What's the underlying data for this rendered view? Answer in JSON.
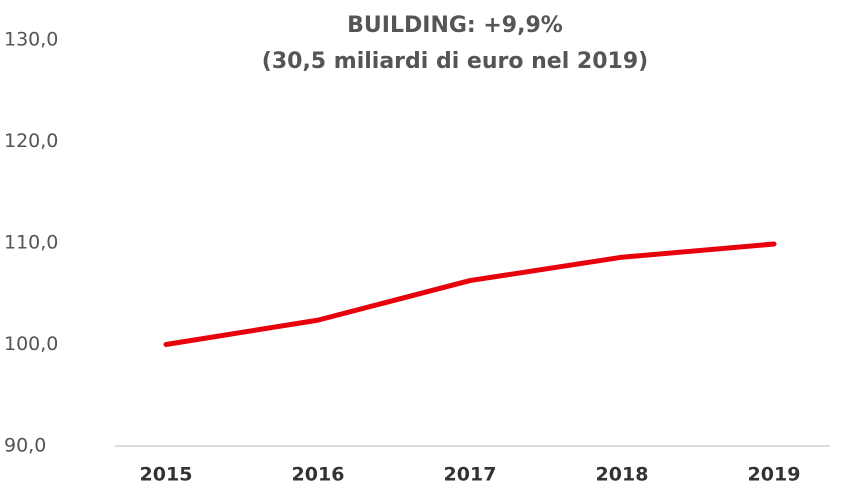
{
  "chart_data": {
    "type": "line",
    "title": "BUILDING: +9,9%",
    "subtitle": "(30,5 miliardi di euro nel 2019)",
    "categories": [
      "2015",
      "2016",
      "2017",
      "2018",
      "2019"
    ],
    "series": [
      {
        "name": "Building",
        "color": "#e8000b",
        "values": [
          100.0,
          102.4,
          106.3,
          108.6,
          109.9
        ]
      }
    ],
    "ylim": [
      90,
      130
    ],
    "yticks": [
      {
        "value": 90,
        "label": "90,0"
      },
      {
        "value": 100,
        "label": "100,0"
      },
      {
        "value": 110,
        "label": "110,0"
      },
      {
        "value": 120,
        "label": "120,0"
      },
      {
        "value": 130,
        "label": "130,0"
      }
    ],
    "grid": false
  }
}
